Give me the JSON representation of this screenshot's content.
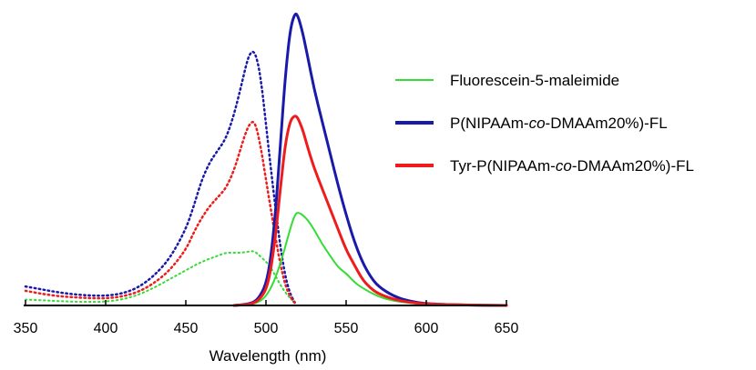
{
  "chart_data": {
    "type": "line",
    "title": "",
    "xlabel": "Wavelength (nm)",
    "ylabel": "",
    "xlim": [
      350,
      650
    ],
    "ylim": [
      0,
      1.0
    ],
    "xticks": [
      350,
      400,
      450,
      500,
      550,
      600,
      650
    ],
    "grid": false,
    "legend_position": "right",
    "legend": [
      {
        "label_parts": [
          {
            "text": "Fluorescein-5-maleimide",
            "italic": false
          }
        ],
        "color": "#33dd33",
        "weight": "thin"
      },
      {
        "label_parts": [
          {
            "text": "P(NIPAAm-",
            "italic": false
          },
          {
            "text": "co",
            "italic": true
          },
          {
            "text": "-DMAAm20%)-FL",
            "italic": false
          }
        ],
        "color": "#1a1aaa",
        "weight": "thick"
      },
      {
        "label_parts": [
          {
            "text": "Tyr-P(NIPAAm-",
            "italic": false
          },
          {
            "text": "co",
            "italic": true
          },
          {
            "text": "-DMAAm20%)-FL",
            "italic": false
          }
        ],
        "color": "#ee1c1c",
        "weight": "thick"
      }
    ],
    "series": [
      {
        "color": "#33dd33",
        "style": "solid",
        "kind": "emission",
        "width": 2,
        "x": [
          480,
          490,
          495,
          500,
          505,
          510,
          515,
          518,
          520,
          525,
          530,
          535,
          540,
          545,
          550,
          555,
          560,
          570,
          580,
          590,
          600,
          620,
          650
        ],
        "y": [
          0.0,
          0.003,
          0.01,
          0.03,
          0.08,
          0.16,
          0.26,
          0.31,
          0.32,
          0.3,
          0.26,
          0.21,
          0.17,
          0.13,
          0.11,
          0.08,
          0.06,
          0.03,
          0.015,
          0.008,
          0.004,
          0.001,
          0.0
        ]
      },
      {
        "color": "#1a1aaa",
        "style": "solid",
        "kind": "emission",
        "width": 3,
        "x": [
          480,
          490,
          495,
          500,
          503,
          506,
          509,
          512,
          515,
          518,
          520,
          523,
          526,
          530,
          535,
          540,
          545,
          550,
          555,
          560,
          565,
          570,
          580,
          590,
          600,
          620,
          650
        ],
        "y": [
          0.0,
          0.005,
          0.02,
          0.07,
          0.16,
          0.32,
          0.55,
          0.78,
          0.94,
          1.0,
          0.99,
          0.93,
          0.85,
          0.74,
          0.63,
          0.52,
          0.41,
          0.31,
          0.22,
          0.15,
          0.1,
          0.065,
          0.03,
          0.014,
          0.006,
          0.002,
          0.0
        ]
      },
      {
        "color": "#ee1c1c",
        "style": "solid",
        "kind": "emission",
        "width": 3,
        "x": [
          480,
          490,
          495,
          500,
          503,
          506,
          509,
          512,
          515,
          518,
          520,
          523,
          526,
          530,
          535,
          540,
          545,
          550,
          555,
          560,
          565,
          570,
          580,
          590,
          600,
          620,
          650
        ],
        "y": [
          0.0,
          0.004,
          0.015,
          0.05,
          0.12,
          0.24,
          0.4,
          0.55,
          0.63,
          0.65,
          0.64,
          0.6,
          0.54,
          0.47,
          0.4,
          0.33,
          0.26,
          0.19,
          0.14,
          0.09,
          0.06,
          0.04,
          0.02,
          0.01,
          0.005,
          0.002,
          0.0
        ]
      },
      {
        "color": "#33dd33",
        "style": "dotted",
        "kind": "excitation",
        "width": 2,
        "x": [
          350,
          360,
          370,
          380,
          390,
          400,
          410,
          420,
          430,
          440,
          450,
          460,
          470,
          475,
          480,
          485,
          490,
          493,
          496,
          500,
          503,
          506,
          509,
          512,
          515,
          518
        ],
        "y": [
          0.02,
          0.018,
          0.015,
          0.013,
          0.012,
          0.013,
          0.02,
          0.035,
          0.06,
          0.09,
          0.12,
          0.15,
          0.17,
          0.18,
          0.18,
          0.18,
          0.185,
          0.185,
          0.17,
          0.15,
          0.13,
          0.1,
          0.07,
          0.045,
          0.025,
          0.01
        ]
      },
      {
        "color": "#1a1aaa",
        "style": "dotted",
        "kind": "excitation",
        "width": 2.5,
        "x": [
          350,
          360,
          370,
          380,
          390,
          400,
          410,
          420,
          430,
          440,
          450,
          455,
          460,
          465,
          470,
          475,
          480,
          485,
          488,
          490,
          492,
          494,
          496,
          498,
          500,
          503,
          506,
          509,
          512,
          515,
          518
        ],
        "y": [
          0.065,
          0.055,
          0.045,
          0.038,
          0.034,
          0.033,
          0.04,
          0.06,
          0.1,
          0.16,
          0.26,
          0.34,
          0.43,
          0.49,
          0.53,
          0.57,
          0.65,
          0.76,
          0.83,
          0.86,
          0.87,
          0.85,
          0.8,
          0.72,
          0.62,
          0.47,
          0.33,
          0.2,
          0.1,
          0.04,
          0.01
        ]
      },
      {
        "color": "#ee1c1c",
        "style": "dotted",
        "kind": "excitation",
        "width": 2.5,
        "x": [
          350,
          360,
          370,
          380,
          390,
          400,
          410,
          420,
          430,
          440,
          450,
          455,
          460,
          465,
          470,
          475,
          480,
          485,
          488,
          490,
          492,
          494,
          496,
          498,
          500,
          503,
          506,
          509,
          512,
          515,
          518
        ],
        "y": [
          0.05,
          0.04,
          0.032,
          0.028,
          0.025,
          0.024,
          0.03,
          0.045,
          0.075,
          0.12,
          0.19,
          0.25,
          0.3,
          0.34,
          0.37,
          0.4,
          0.46,
          0.55,
          0.6,
          0.62,
          0.63,
          0.61,
          0.56,
          0.5,
          0.43,
          0.33,
          0.23,
          0.14,
          0.07,
          0.03,
          0.008
        ]
      }
    ]
  }
}
